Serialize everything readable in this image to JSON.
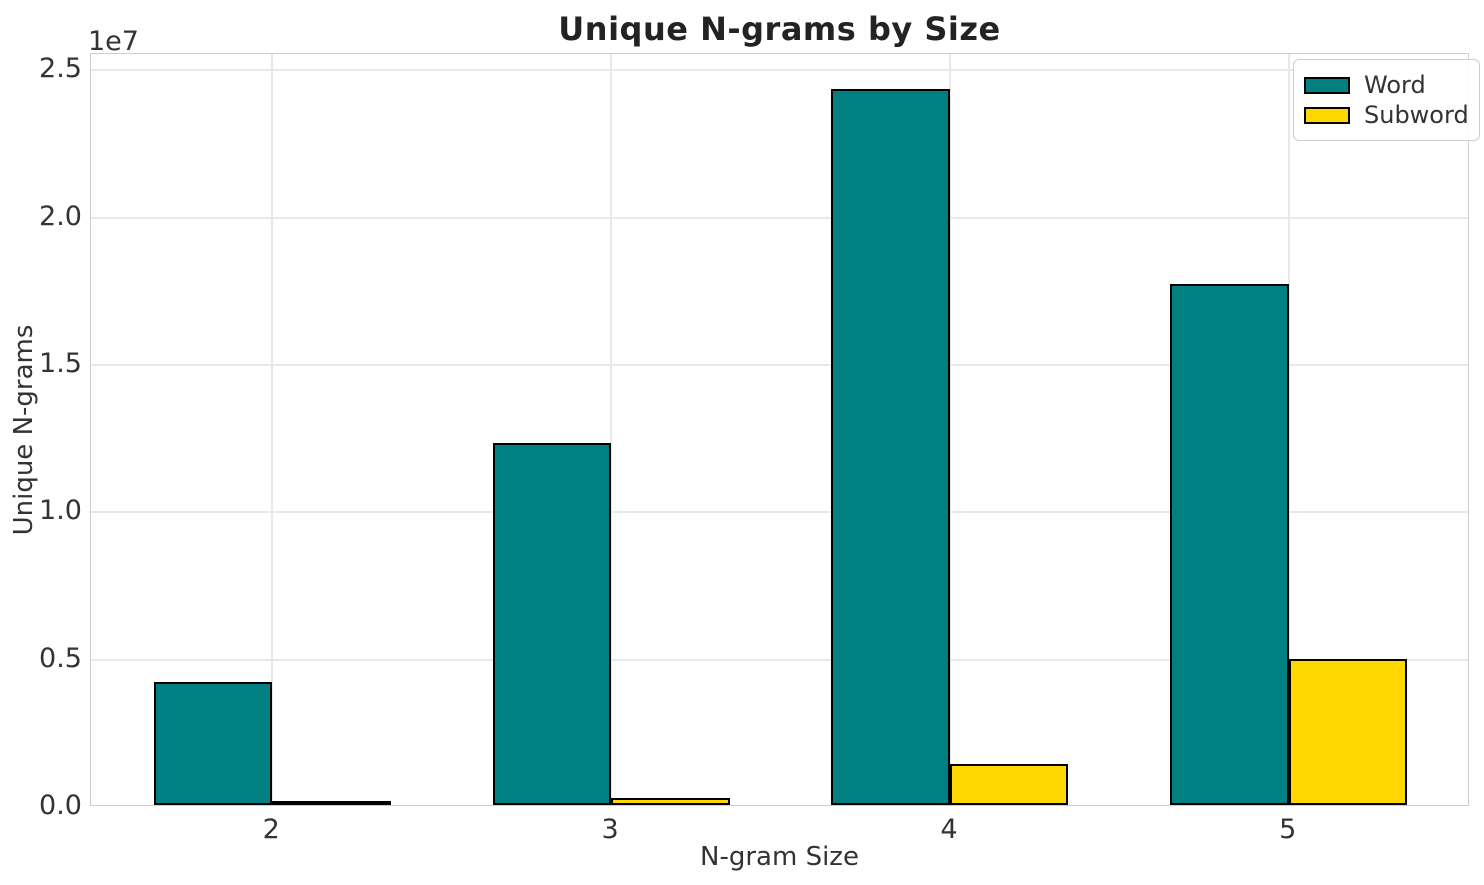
{
  "chart_data": {
    "type": "bar",
    "title": "Unique N-grams by Size",
    "xlabel": "N-gram Size",
    "ylabel": "Unique N-grams",
    "y_offset_label": "1e7",
    "categories": [
      "2",
      "3",
      "4",
      "5"
    ],
    "series": [
      {
        "name": "Word",
        "color": "#008080",
        "values": [
          4190000,
          12300000,
          24310000,
          17670000
        ]
      },
      {
        "name": "Subword",
        "color": "#FFD700",
        "values": [
          30000,
          250000,
          1400000,
          4940000
        ]
      }
    ],
    "bar_edge_color": "#000000",
    "bar_width": 0.35,
    "xlim": [
      -0.535,
      3.535
    ],
    "ylim": [
      0,
      25550000
    ],
    "yticks": {
      "values": [
        0,
        5000000,
        10000000,
        15000000,
        20000000,
        25000000
      ],
      "labels": [
        "0.0",
        "0.5",
        "1.0",
        "1.5",
        "2.0",
        "2.5"
      ]
    },
    "grid": true,
    "legend_position": "upper right"
  },
  "style_colors": {
    "grid": "#e8e8e8",
    "spine": "#cdcdcd",
    "tick_text": "#333333",
    "title_text": "#232323"
  }
}
